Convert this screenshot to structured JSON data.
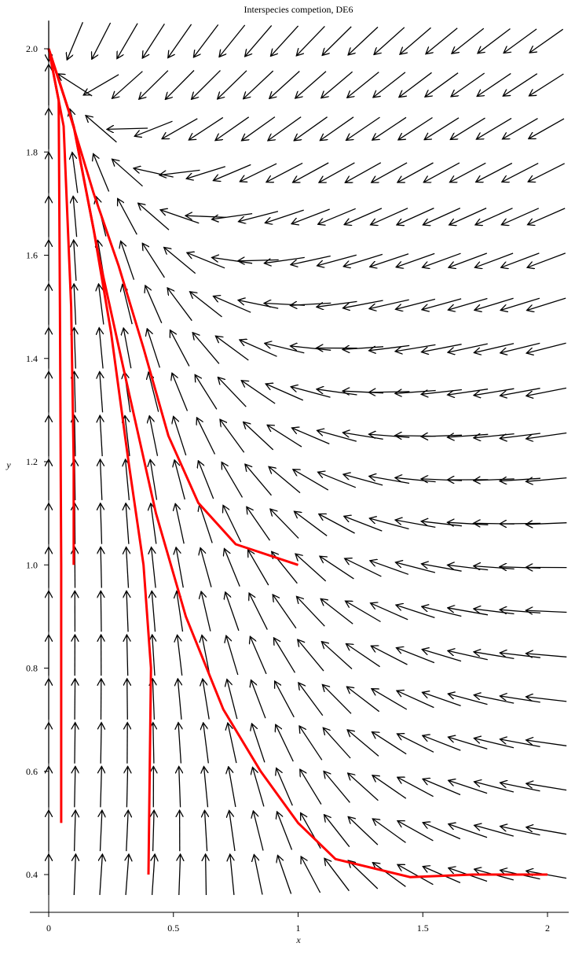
{
  "chart_data": {
    "type": "vector-field",
    "title": "Interspecies competion, DE6",
    "xlabel": "x",
    "ylabel": "y",
    "xlim": [
      0,
      2.0
    ],
    "ylim": [
      0.4,
      2.0
    ],
    "x_ticks": [
      "0",
      "0.5",
      "1",
      "1.5",
      "2"
    ],
    "y_ticks": [
      "0.4",
      "0.6",
      "0.8",
      "1.0",
      "1.2",
      "1.4",
      "1.6",
      "1.8",
      "2.0"
    ],
    "grid": false,
    "arrow_color": "#000000",
    "curve_color": "#ff0000",
    "field": {
      "x_samples": [
        0.0,
        0.105,
        0.21,
        0.315,
        0.42,
        0.525,
        0.63,
        0.735,
        0.84,
        0.945,
        1.05,
        1.155,
        1.26,
        1.365,
        1.47,
        1.575,
        1.68,
        1.785,
        1.89,
        1.995
      ],
      "y_samples": [
        0.4,
        0.485,
        0.57,
        0.655,
        0.74,
        0.825,
        0.91,
        0.995,
        1.08,
        1.165,
        1.25,
        1.335,
        1.42,
        1.505,
        1.59,
        1.675,
        1.76,
        1.845,
        1.93,
        2.015
      ],
      "dx": "x*(1 - x - y)",
      "dy": "y*(2 - y - 0.5*x)"
    },
    "series": [
      {
        "x": [
          0.05,
          0.05,
          0.045,
          0.04,
          0.0
        ],
        "y": [
          0.5,
          1.0,
          1.5,
          1.9,
          2.0
        ]
      },
      {
        "x": [
          0.1,
          0.1,
          0.09,
          0.06,
          0.0
        ],
        "y": [
          1.0,
          1.2,
          1.5,
          1.85,
          2.0
        ]
      },
      {
        "x": [
          0.4,
          0.41,
          0.38,
          0.32,
          0.25,
          0.18,
          0.1,
          0.0
        ],
        "y": [
          0.4,
          0.8,
          1.0,
          1.2,
          1.45,
          1.65,
          1.85,
          2.0
        ]
      },
      {
        "x": [
          1.0,
          0.75,
          0.6,
          0.48,
          0.38,
          0.28,
          0.18,
          0.08,
          0.0
        ],
        "y": [
          1.0,
          1.04,
          1.12,
          1.25,
          1.42,
          1.58,
          1.72,
          1.88,
          2.0
        ]
      },
      {
        "x": [
          2.0,
          1.7,
          1.45,
          1.15,
          1.0,
          0.85,
          0.7,
          0.55,
          0.43,
          0.3,
          0.2,
          0.1,
          0.0
        ],
        "y": [
          0.4,
          0.4,
          0.395,
          0.43,
          0.5,
          0.6,
          0.72,
          0.9,
          1.1,
          1.38,
          1.6,
          1.85,
          2.0
        ]
      }
    ]
  }
}
